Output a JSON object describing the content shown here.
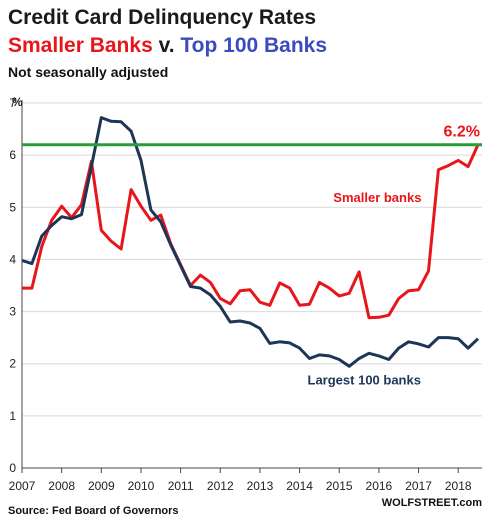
{
  "title_line1": "Credit Card Delinquency Rates",
  "title_line2": {
    "part1": "Smaller Banks",
    "part2": " v. ",
    "part3": "Top 100 Banks"
  },
  "note": "Not seasonally adjusted",
  "source": "Source: Fed Board of Governors",
  "brand": "WOLFSTREET.com",
  "colors": {
    "small": "#e8151a",
    "large": "#1d3557",
    "ref": "#2a9d3a",
    "small_text": "#e8151a",
    "large_text": "#3b4bbf"
  },
  "chart_data": {
    "type": "line",
    "ylabel": "%",
    "ylim": [
      0,
      7
    ],
    "xlim": [
      2007,
      2018.6
    ],
    "yticks": [
      "0",
      "1",
      "2",
      "3",
      "4",
      "5",
      "6",
      "7"
    ],
    "xticks": [
      "2007",
      "2008",
      "2009",
      "2010",
      "2011",
      "2012",
      "2013",
      "2014",
      "2015",
      "2016",
      "2017",
      "2018"
    ],
    "reference_line": {
      "value": 6.2,
      "label": "6.2%"
    },
    "series": [
      {
        "name": "Smaller banks",
        "x": [
          2007.0,
          2007.25,
          2007.5,
          2007.75,
          2008.0,
          2008.25,
          2008.5,
          2008.75,
          2009.0,
          2009.25,
          2009.5,
          2009.75,
          2010.0,
          2010.25,
          2010.5,
          2010.75,
          2011.0,
          2011.25,
          2011.5,
          2011.75,
          2012.0,
          2012.25,
          2012.5,
          2012.75,
          2013.0,
          2013.25,
          2013.5,
          2013.75,
          2014.0,
          2014.25,
          2014.5,
          2014.75,
          2015.0,
          2015.25,
          2015.5,
          2015.75,
          2016.0,
          2016.25,
          2016.5,
          2016.75,
          2017.0,
          2017.25,
          2017.5,
          2017.75,
          2018.0,
          2018.25,
          2018.5
        ],
        "y": [
          3.45,
          3.45,
          4.25,
          4.75,
          5.02,
          4.8,
          5.05,
          5.88,
          4.56,
          4.35,
          4.2,
          5.34,
          5.02,
          4.75,
          4.85,
          4.3,
          3.9,
          3.5,
          3.7,
          3.56,
          3.25,
          3.15,
          3.4,
          3.42,
          3.18,
          3.12,
          3.55,
          3.45,
          3.12,
          3.14,
          3.56,
          3.45,
          3.3,
          3.35,
          3.76,
          2.88,
          2.89,
          2.93,
          3.25,
          3.4,
          3.42,
          3.78,
          5.72,
          5.8,
          5.9,
          5.78,
          6.2
        ]
      },
      {
        "name": "Largest 100 banks",
        "x": [
          2007.0,
          2007.25,
          2007.5,
          2007.75,
          2008.0,
          2008.25,
          2008.5,
          2008.75,
          2009.0,
          2009.25,
          2009.5,
          2009.75,
          2010.0,
          2010.25,
          2010.5,
          2010.75,
          2011.0,
          2011.25,
          2011.5,
          2011.75,
          2012.0,
          2012.25,
          2012.5,
          2012.75,
          2013.0,
          2013.25,
          2013.5,
          2013.75,
          2014.0,
          2014.25,
          2014.5,
          2014.75,
          2015.0,
          2015.25,
          2015.5,
          2015.75,
          2016.0,
          2016.25,
          2016.5,
          2016.75,
          2017.0,
          2017.25,
          2017.5,
          2017.75,
          2018.0,
          2018.25,
          2018.5
        ],
        "y": [
          3.98,
          3.92,
          4.45,
          4.65,
          4.82,
          4.78,
          4.86,
          5.78,
          6.72,
          6.65,
          6.64,
          6.46,
          5.9,
          4.95,
          4.72,
          4.28,
          3.88,
          3.48,
          3.45,
          3.32,
          3.1,
          2.8,
          2.82,
          2.78,
          2.68,
          2.39,
          2.42,
          2.4,
          2.3,
          2.1,
          2.17,
          2.15,
          2.08,
          1.95,
          2.1,
          2.2,
          2.15,
          2.08,
          2.3,
          2.42,
          2.38,
          2.32,
          2.5,
          2.5,
          2.48,
          2.3,
          2.48
        ]
      }
    ],
    "annotations": [
      {
        "text": "Smaller banks",
        "series": 0
      },
      {
        "text": "Largest 100 banks",
        "series": 1
      }
    ]
  }
}
